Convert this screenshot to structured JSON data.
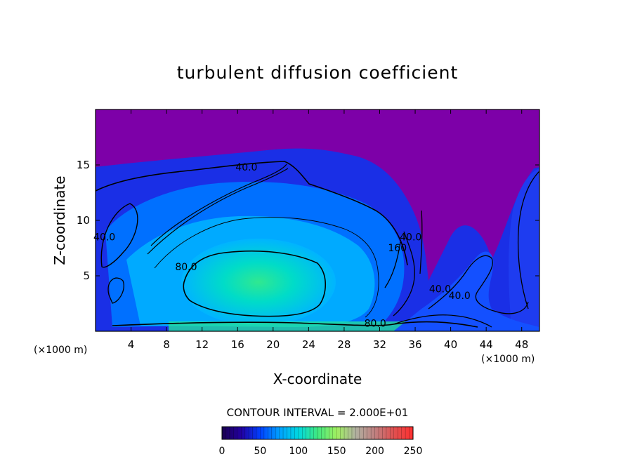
{
  "chart_data": {
    "type": "heatmap",
    "title": "turbulent diffusion coefficient",
    "xlabel": "X-coordinate",
    "ylabel": "Z-coordinate",
    "x_unit": "(×1000 m)",
    "z_unit": "(×1000 m)",
    "xlim": [
      0,
      50
    ],
    "ylim": [
      0,
      20
    ],
    "x_ticks": [
      "4",
      "8",
      "12",
      "16",
      "20",
      "24",
      "28",
      "32",
      "36",
      "40",
      "44",
      "48"
    ],
    "y_ticks": [
      "5",
      "10",
      "15"
    ],
    "contour_interval_text": "CONTOUR INTERVAL = 2.000E+01",
    "contour_labels": [
      {
        "text": "40.0",
        "x": 17.0,
        "z": 14.5
      },
      {
        "text": "40.0",
        "x": 1.0,
        "z": 8.2
      },
      {
        "text": "80.0",
        "x": 10.2,
        "z": 5.5
      },
      {
        "text": "80.0",
        "x": 31.5,
        "z": 0.4
      },
      {
        "text": "40.0",
        "x": 35.5,
        "z": 8.2
      },
      {
        "text": "160",
        "x": 34.0,
        "z": 7.2
      },
      {
        "text": "40.0",
        "x": 38.8,
        "z": 3.5
      },
      {
        "text": "40.0",
        "x": 41.0,
        "z": 2.9
      }
    ],
    "colorbar": {
      "min": 0,
      "max": 250,
      "ticks": [
        "0",
        "50",
        "100",
        "150",
        "200",
        "250"
      ],
      "colors": [
        "#1a0050",
        "#2200a0",
        "#0040ff",
        "#00a0ff",
        "#00d8e0",
        "#40e880",
        "#a0f060",
        "#b0b0a0",
        "#c08080",
        "#e05050",
        "#ff3030"
      ]
    },
    "field_colors": {
      "background": "#7d00a8",
      "outer": "#1a2fe6",
      "mid": "#0070ff",
      "inner": "#00aaff",
      "core": "#00ddd0",
      "peak": "#30e890"
    },
    "grid": false
  }
}
